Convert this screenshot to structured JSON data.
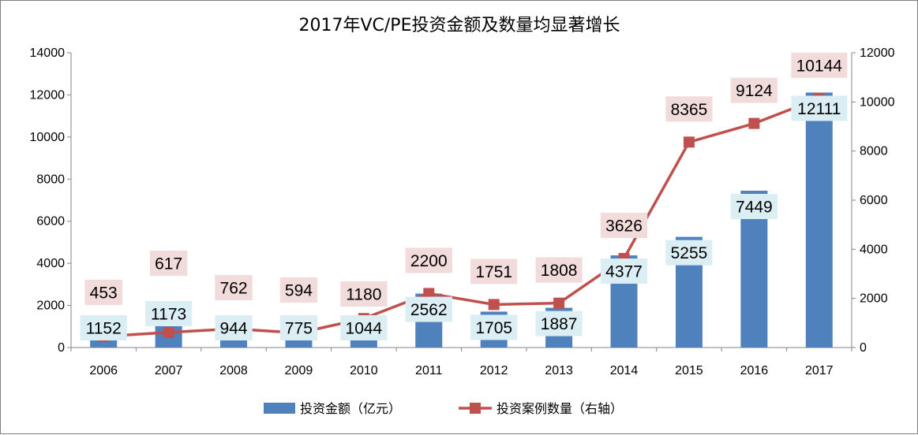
{
  "chart_data": {
    "type": "bar+line",
    "title": "2017年VC/PE投资金额及数量均显著增长",
    "categories": [
      "2006",
      "2007",
      "2008",
      "2009",
      "2010",
      "2011",
      "2012",
      "2013",
      "2014",
      "2015",
      "2016",
      "2017"
    ],
    "series": [
      {
        "name": "投资金额（亿元）",
        "type": "bar",
        "axis": "left",
        "color": "#4f81bd",
        "values": [
          1152,
          1173,
          944,
          775,
          1044,
          2562,
          1705,
          1887,
          4377,
          5255,
          7449,
          12111
        ]
      },
      {
        "name": "投资案例数量（右轴）",
        "type": "line",
        "axis": "right",
        "color": "#c0504d",
        "marker": "square",
        "values": [
          453,
          617,
          762,
          594,
          1180,
          2200,
          1751,
          1808,
          3626,
          8365,
          9124,
          10144
        ]
      }
    ],
    "y_left": {
      "min": 0,
      "max": 14000,
      "ticks": [
        "0",
        "2000",
        "4000",
        "6000",
        "8000",
        "10000",
        "12000",
        "14000"
      ]
    },
    "y_right": {
      "min": 0,
      "max": 12000,
      "ticks": [
        "0",
        "2000",
        "4000",
        "6000",
        "8000",
        "10000",
        "12000"
      ]
    },
    "data_label_colors": {
      "bar_label_bg": "#dbeef4",
      "line_label_bg": "#f2dcdb"
    },
    "grid": false,
    "legend_position": "bottom"
  }
}
